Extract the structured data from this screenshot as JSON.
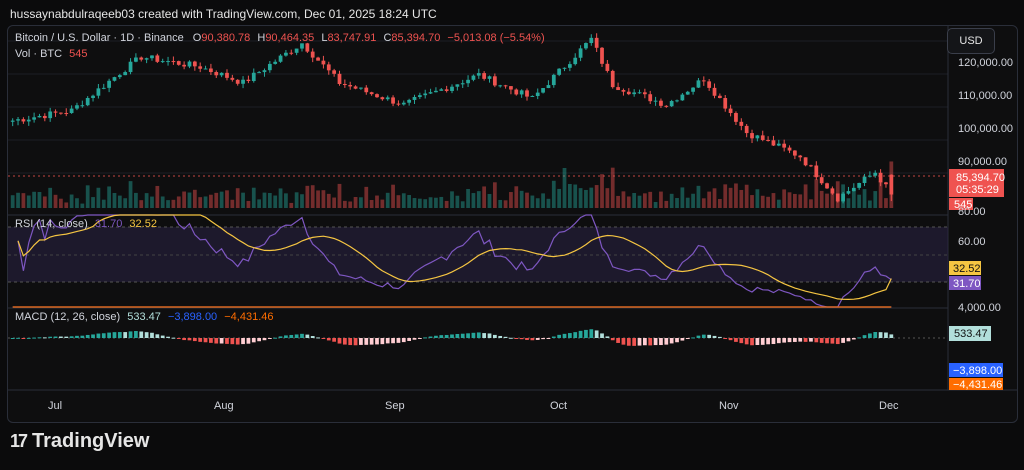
{
  "header": {
    "caption": "hussaynabdulraqeeb03 created with TradingView.com, Dec 01, 2025 18:24 UTC"
  },
  "toolbar": {
    "currency_label": "USD"
  },
  "legend": {
    "symbol": "Bitcoin / U.S. Dollar · 1D · Binance",
    "o_label": "O",
    "o_value": "90,380.78",
    "h_label": "H",
    "h_value": "90,464.35",
    "l_label": "L",
    "l_value": "83,747.91",
    "c_label": "C",
    "c_value": "85,394.70",
    "change": "−5,013.08 (−5.54%)",
    "vol_label": "Vol · BTC",
    "vol_value": "545"
  },
  "price_axis": {
    "ticks": [
      "120,000.00",
      "110,000.00",
      "100,000.00",
      "90,000.00"
    ],
    "last_price": "85,394.70",
    "countdown": "05:35:29",
    "volume_tag": "545"
  },
  "rsi": {
    "label": "RSI (14, close)",
    "value_rsi": "31.70",
    "value_ma": "32.52",
    "ticks": [
      "80.00",
      "60.00"
    ],
    "tag_ma": "32.52",
    "tag_rsi": "31.70"
  },
  "macd": {
    "label": "MACD (12, 26, close)",
    "value_hist": "533.47",
    "value_macd": "−3,898.00",
    "value_signal": "−4,431.46",
    "ticks": [
      "4,000.00"
    ],
    "tag_hist": "533.47",
    "tag_macd": "−3,898.00",
    "tag_signal": "−4,431.46"
  },
  "time_axis": {
    "labels": [
      "Jul",
      "Aug",
      "Sep",
      "Oct",
      "Nov",
      "Dec"
    ]
  },
  "branding": {
    "logo_mark": "17",
    "logo_text": "TradingView"
  },
  "colors": {
    "up": "#26a69a",
    "down": "#ef5350",
    "rsi_line": "#7e57c2",
    "rsi_ma": "#f5c542",
    "macd_line": "#2962ff",
    "signal_line": "#ff6d00",
    "hist_up": "#26a69a",
    "hist_down": "#ef5350"
  },
  "chart_data": {
    "type": "candlestick",
    "symbol": "BTCUSD",
    "timeframe": "1D",
    "x_range": [
      "2025-06-20",
      "2025-12-01"
    ],
    "y_range": [
      82000,
      124000
    ],
    "price_path_approx": [
      {
        "date": "2025-06-20",
        "close": 104000
      },
      {
        "date": "2025-07-01",
        "close": 106500
      },
      {
        "date": "2025-07-10",
        "close": 116000
      },
      {
        "date": "2025-07-14",
        "close": 120000
      },
      {
        "date": "2025-07-25",
        "close": 117500
      },
      {
        "date": "2025-08-02",
        "close": 113500
      },
      {
        "date": "2025-08-13",
        "close": 123500
      },
      {
        "date": "2025-08-20",
        "close": 113500
      },
      {
        "date": "2025-09-01",
        "close": 108000
      },
      {
        "date": "2025-09-15",
        "close": 115500
      },
      {
        "date": "2025-09-25",
        "close": 109500
      },
      {
        "date": "2025-10-06",
        "close": 124500
      },
      {
        "date": "2025-10-10",
        "close": 113000
      },
      {
        "date": "2025-10-20",
        "close": 108000
      },
      {
        "date": "2025-10-27",
        "close": 114500
      },
      {
        "date": "2025-11-04",
        "close": 101000
      },
      {
        "date": "2025-11-14",
        "close": 95000
      },
      {
        "date": "2025-11-21",
        "close": 84500
      },
      {
        "date": "2025-11-28",
        "close": 91000
      },
      {
        "date": "2025-12-01",
        "close": 85394.7
      }
    ],
    "ohlc_last": {
      "open": 90380.78,
      "high": 90464.35,
      "low": 83747.91,
      "close": 85394.7
    },
    "volume_last": 545,
    "rsi_last": 31.7,
    "rsi_ma_last": 32.52,
    "macd_last": -3898.0,
    "signal_last": -4431.46,
    "hist_last": 533.47
  }
}
